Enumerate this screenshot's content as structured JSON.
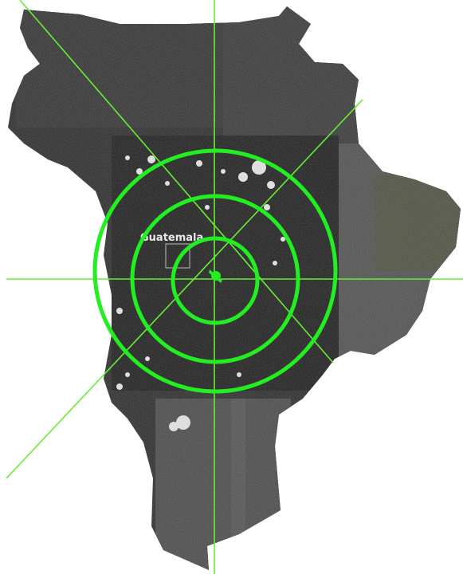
{
  "map": {
    "place_label": "Guatemala",
    "colors": {
      "background": "#ffffff",
      "imagery_dark": "#2a2a2a",
      "imagery_mid": "#3d3d3d",
      "imagery_light": "#6a6a6a",
      "crosshair": "#66ee33",
      "range_ring": "#22ee22",
      "label": "#e8e8e8"
    },
    "icons": [
      "crosshair-center-icon",
      "range-rings",
      "place-marker-box"
    ]
  }
}
